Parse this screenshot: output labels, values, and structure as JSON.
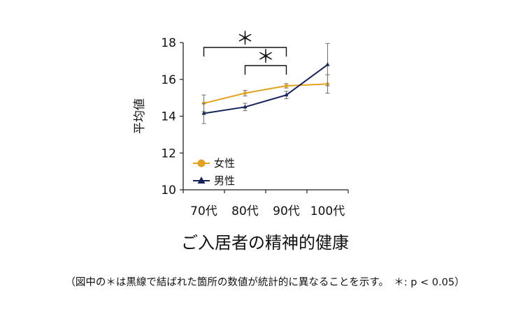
{
  "chart_data": {
    "type": "line",
    "title": "ご入居者の精神的健康",
    "ylabel": "平均値",
    "xlabel": "",
    "categories": [
      "70代",
      "80代",
      "90代",
      "100代"
    ],
    "ylim": [
      10,
      18
    ],
    "yticks": [
      10,
      12,
      14,
      16,
      18
    ],
    "grid": false,
    "legend_position": "bottom-left",
    "series": [
      {
        "name": "女性",
        "color": "#E3A21A",
        "marker": "circle",
        "values": [
          14.7,
          15.25,
          15.65,
          15.75
        ],
        "error": [
          0.45,
          0.15,
          0.12,
          0.5
        ]
      },
      {
        "name": "男性",
        "color": "#14245A",
        "marker": "triangle",
        "values": [
          14.15,
          14.5,
          15.15,
          16.8
        ],
        "error": [
          0.55,
          0.2,
          0.2,
          1.15
        ]
      }
    ],
    "significance": [
      {
        "from": "70代",
        "to": "90代",
        "label": "＊"
      },
      {
        "from": "80代",
        "to": "90代",
        "label": "＊"
      }
    ],
    "footnote": "（図中の＊は黒線で結ばれた箇所の数値が統計的に異なることを示す。　＊: p < 0.05）"
  }
}
